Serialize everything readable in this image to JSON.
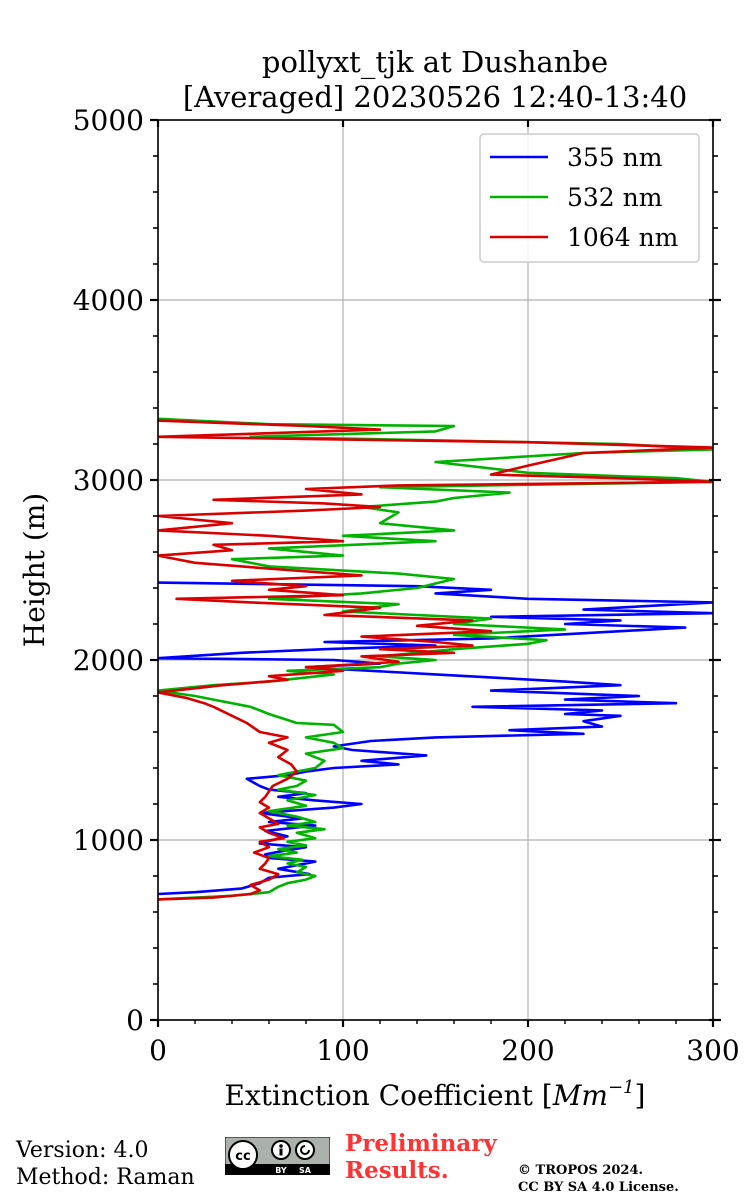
{
  "chart_data": {
    "type": "line",
    "title_line1": "pollyxt_tjk at Dushanbe",
    "title_line2": "[Averaged] 20230526 12:40-13:40",
    "xlabel_text": "Extinction Coefficient [",
    "xlabel_unit": "Mm",
    "xlabel_exp": "−1",
    "xlabel_close": "]",
    "ylabel": "Height (m)",
    "xlim": [
      0,
      300
    ],
    "ylim": [
      0,
      5000
    ],
    "xticks": [
      0,
      100,
      200,
      300
    ],
    "yticks": [
      0,
      1000,
      2000,
      3000,
      4000,
      5000
    ],
    "xtick_labels": [
      "0",
      "100",
      "200",
      "300"
    ],
    "ytick_labels": [
      "0",
      "1000",
      "2000",
      "3000",
      "4000",
      "5000"
    ],
    "grid": true,
    "legend_position": "top-right",
    "series": [
      {
        "name": "355 nm",
        "color": "#0000ff",
        "points": [
          [
            0,
            700
          ],
          [
            20,
            710
          ],
          [
            45,
            730
          ],
          [
            55,
            760
          ],
          [
            60,
            790
          ],
          [
            70,
            800
          ],
          [
            82,
            810
          ],
          [
            65,
            840
          ],
          [
            75,
            860
          ],
          [
            85,
            880
          ],
          [
            60,
            900
          ],
          [
            58,
            920
          ],
          [
            68,
            940
          ],
          [
            80,
            960
          ],
          [
            55,
            980
          ],
          [
            62,
            1000
          ],
          [
            70,
            1020
          ],
          [
            58,
            1050
          ],
          [
            75,
            1070
          ],
          [
            85,
            1080
          ],
          [
            60,
            1100
          ],
          [
            78,
            1120
          ],
          [
            55,
            1150
          ],
          [
            95,
            1180
          ],
          [
            110,
            1200
          ],
          [
            85,
            1220
          ],
          [
            65,
            1240
          ],
          [
            80,
            1260
          ],
          [
            60,
            1280
          ],
          [
            55,
            1300
          ],
          [
            48,
            1340
          ],
          [
            70,
            1360
          ],
          [
            80,
            1380
          ],
          [
            95,
            1400
          ],
          [
            130,
            1420
          ],
          [
            110,
            1440
          ],
          [
            145,
            1470
          ],
          [
            105,
            1500
          ],
          [
            95,
            1520
          ],
          [
            115,
            1550
          ],
          [
            150,
            1570
          ],
          [
            230,
            1590
          ],
          [
            190,
            1610
          ],
          [
            240,
            1630
          ],
          [
            230,
            1660
          ],
          [
            250,
            1690
          ],
          [
            220,
            1700
          ],
          [
            240,
            1720
          ],
          [
            170,
            1740
          ],
          [
            280,
            1760
          ],
          [
            220,
            1780
          ],
          [
            260,
            1800
          ],
          [
            180,
            1830
          ],
          [
            250,
            1860
          ],
          [
            220,
            1880
          ],
          [
            150,
            1920
          ],
          [
            80,
            1960
          ],
          [
            120,
            1980
          ],
          [
            95,
            2000
          ],
          [
            0,
            2010
          ],
          [
            45,
            2040
          ],
          [
            90,
            2060
          ],
          [
            150,
            2080
          ],
          [
            90,
            2100
          ],
          [
            180,
            2120
          ],
          [
            285,
            2180
          ],
          [
            220,
            2200
          ],
          [
            250,
            2220
          ],
          [
            180,
            2240
          ],
          [
            300,
            2260
          ],
          [
            230,
            2280
          ],
          [
            300,
            2320
          ],
          [
            200,
            2340
          ],
          [
            150,
            2370
          ],
          [
            180,
            2390
          ],
          [
            140,
            2410
          ],
          [
            0,
            2430
          ]
        ]
      },
      {
        "name": "532 nm",
        "color": "#00b300",
        "points": [
          [
            0,
            670
          ],
          [
            40,
            690
          ],
          [
            60,
            710
          ],
          [
            65,
            740
          ],
          [
            70,
            760
          ],
          [
            80,
            780
          ],
          [
            85,
            800
          ],
          [
            75,
            820
          ],
          [
            80,
            850
          ],
          [
            70,
            870
          ],
          [
            78,
            890
          ],
          [
            60,
            910
          ],
          [
            75,
            930
          ],
          [
            65,
            950
          ],
          [
            80,
            970
          ],
          [
            70,
            990
          ],
          [
            85,
            1010
          ],
          [
            75,
            1040
          ],
          [
            90,
            1060
          ],
          [
            70,
            1080
          ],
          [
            85,
            1100
          ],
          [
            75,
            1130
          ],
          [
            60,
            1160
          ],
          [
            80,
            1190
          ],
          [
            70,
            1220
          ],
          [
            85,
            1250
          ],
          [
            65,
            1280
          ],
          [
            75,
            1300
          ],
          [
            80,
            1330
          ],
          [
            65,
            1360
          ],
          [
            85,
            1400
          ],
          [
            90,
            1440
          ],
          [
            80,
            1480
          ],
          [
            100,
            1510
          ],
          [
            95,
            1540
          ],
          [
            80,
            1570
          ],
          [
            100,
            1600
          ],
          [
            95,
            1640
          ],
          [
            75,
            1650
          ],
          [
            60,
            1700
          ],
          [
            50,
            1740
          ],
          [
            30,
            1780
          ],
          [
            20,
            1800
          ],
          [
            0,
            1830
          ],
          [
            30,
            1860
          ],
          [
            60,
            1880
          ],
          [
            95,
            1920
          ],
          [
            70,
            1940
          ],
          [
            120,
            1960
          ],
          [
            130,
            1980
          ],
          [
            150,
            2000
          ],
          [
            120,
            2020
          ],
          [
            140,
            2040
          ],
          [
            160,
            2060
          ],
          [
            200,
            2090
          ],
          [
            210,
            2110
          ],
          [
            160,
            2140
          ],
          [
            220,
            2170
          ],
          [
            160,
            2200
          ],
          [
            180,
            2230
          ],
          [
            100,
            2270
          ],
          [
            130,
            2310
          ],
          [
            60,
            2340
          ],
          [
            110,
            2370
          ],
          [
            140,
            2400
          ],
          [
            160,
            2450
          ],
          [
            130,
            2480
          ],
          [
            60,
            2520
          ],
          [
            40,
            2560
          ],
          [
            100,
            2580
          ],
          [
            60,
            2620
          ],
          [
            150,
            2660
          ],
          [
            100,
            2690
          ],
          [
            160,
            2720
          ],
          [
            120,
            2760
          ],
          [
            130,
            2820
          ],
          [
            110,
            2850
          ],
          [
            150,
            2880
          ],
          [
            160,
            2900
          ],
          [
            190,
            2930
          ],
          [
            120,
            2960
          ],
          [
            300,
            2990
          ],
          [
            280,
            3010
          ],
          [
            200,
            3040
          ],
          [
            150,
            3100
          ],
          [
            230,
            3150
          ],
          [
            300,
            3170
          ],
          [
            250,
            3200
          ],
          [
            50,
            3240
          ],
          [
            150,
            3270
          ],
          [
            160,
            3300
          ],
          [
            60,
            3310
          ],
          [
            0,
            3340
          ]
        ]
      },
      {
        "name": "1064 nm",
        "color": "#d90000",
        "points": [
          [
            0,
            670
          ],
          [
            30,
            680
          ],
          [
            50,
            700
          ],
          [
            55,
            720
          ],
          [
            50,
            750
          ],
          [
            60,
            780
          ],
          [
            65,
            810
          ],
          [
            55,
            840
          ],
          [
            58,
            870
          ],
          [
            60,
            900
          ],
          [
            52,
            930
          ],
          [
            60,
            960
          ],
          [
            55,
            990
          ],
          [
            68,
            1010
          ],
          [
            60,
            1040
          ],
          [
            55,
            1070
          ],
          [
            65,
            1090
          ],
          [
            60,
            1120
          ],
          [
            55,
            1150
          ],
          [
            60,
            1180
          ],
          [
            55,
            1210
          ],
          [
            58,
            1240
          ],
          [
            60,
            1270
          ],
          [
            62,
            1300
          ],
          [
            70,
            1340
          ],
          [
            75,
            1380
          ],
          [
            72,
            1420
          ],
          [
            65,
            1460
          ],
          [
            70,
            1500
          ],
          [
            60,
            1540
          ],
          [
            70,
            1570
          ],
          [
            55,
            1600
          ],
          [
            48,
            1650
          ],
          [
            40,
            1690
          ],
          [
            30,
            1740
          ],
          [
            25,
            1760
          ],
          [
            15,
            1790
          ],
          [
            0,
            1820
          ],
          [
            35,
            1860
          ],
          [
            70,
            1890
          ],
          [
            60,
            1910
          ],
          [
            100,
            1940
          ],
          [
            80,
            1960
          ],
          [
            130,
            1990
          ],
          [
            110,
            2020
          ],
          [
            160,
            2040
          ],
          [
            120,
            2060
          ],
          [
            170,
            2080
          ],
          [
            150,
            2100
          ],
          [
            110,
            2130
          ],
          [
            180,
            2160
          ],
          [
            140,
            2190
          ],
          [
            170,
            2220
          ],
          [
            90,
            2250
          ],
          [
            120,
            2290
          ],
          [
            50,
            2320
          ],
          [
            10,
            2340
          ],
          [
            100,
            2360
          ],
          [
            60,
            2390
          ],
          [
            80,
            2410
          ],
          [
            40,
            2440
          ],
          [
            110,
            2470
          ],
          [
            70,
            2500
          ],
          [
            20,
            2540
          ],
          [
            0,
            2580
          ],
          [
            40,
            2610
          ],
          [
            30,
            2640
          ],
          [
            100,
            2660
          ],
          [
            60,
            2690
          ],
          [
            0,
            2720
          ],
          [
            40,
            2760
          ],
          [
            0,
            2800
          ],
          [
            80,
            2830
          ],
          [
            120,
            2850
          ],
          [
            90,
            2870
          ],
          [
            30,
            2890
          ],
          [
            110,
            2920
          ],
          [
            80,
            2950
          ],
          [
            130,
            2970
          ],
          [
            300,
            2990
          ],
          [
            250,
            3010
          ],
          [
            180,
            3030
          ],
          [
            200,
            3080
          ],
          [
            230,
            3150
          ],
          [
            300,
            3180
          ],
          [
            200,
            3210
          ],
          [
            0,
            3240
          ],
          [
            120,
            3280
          ],
          [
            80,
            3300
          ],
          [
            0,
            3330
          ]
        ]
      }
    ]
  },
  "footer": {
    "version": "Version: 4.0",
    "method": "Method: Raman",
    "preliminary_line1": "Preliminary",
    "preliminary_line2": "Results.",
    "copyright_line1": "© TROPOS 2024.",
    "copyright_line2": "CC BY SA 4.0 License.",
    "license_badge": "cc-by-sa-badge",
    "license_badge_labels": [
      "cc",
      "BY",
      "SA"
    ]
  }
}
